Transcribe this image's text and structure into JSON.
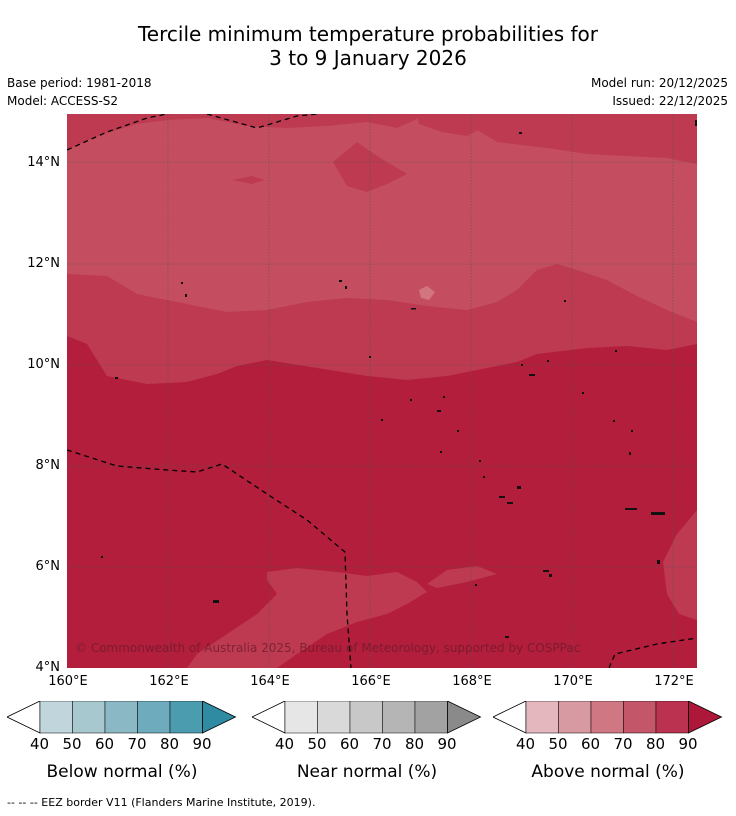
{
  "title_line1": "Tercile minimum temperature probabilities for",
  "title_line2": "3 to 9 January 2026",
  "base_period": "Base period: 1981-2018",
  "model": "Model: ACCESS-S2",
  "model_run": "Model run: 20/12/2025",
  "issued": "Issued: 22/12/2025",
  "copyright": "© Commonwealth of Australia 2025, Bureau of Meteorology, supported by COSPPac",
  "footer": "--  --  -- EEZ border V11 (Flanders Marine Institute, 2019).",
  "lat_labels": [
    "14°N",
    "12°N",
    "10°N",
    "8°N",
    "6°N",
    "4°N"
  ],
  "lon_labels": [
    "160°E",
    "162°E",
    "164°E",
    "166°E",
    "168°E",
    "170°E",
    "172°E"
  ],
  "colorbars": [
    {
      "title": "Below normal (%)",
      "ticks": [
        "40",
        "50",
        "60",
        "70",
        "80",
        "90"
      ],
      "colors": [
        "#c0d5dc",
        "#a7c8ce",
        "#8ab9c5",
        "#6eabbc",
        "#4c9caf",
        "#2e8ba2"
      ]
    },
    {
      "title": "Near normal (%)",
      "ticks": [
        "40",
        "50",
        "60",
        "70",
        "80",
        "90"
      ],
      "colors": [
        "#e6e6e6",
        "#d9d9d9",
        "#c8c8c8",
        "#b5b5b5",
        "#a2a2a2",
        "#8a8a8a"
      ]
    },
    {
      "title": "Above normal (%)",
      "ticks": [
        "40",
        "50",
        "60",
        "70",
        "80",
        "90"
      ],
      "colors": [
        "#e3b7bd",
        "#d79aa2",
        "#cf7883",
        "#c4566a",
        "#bb3250",
        "#ad183a"
      ]
    }
  ],
  "map_colors": {
    "c70": "#d3757f",
    "c80": "#c44e5f",
    "c85": "#bd3a51",
    "c90": "#b21e3c"
  }
}
